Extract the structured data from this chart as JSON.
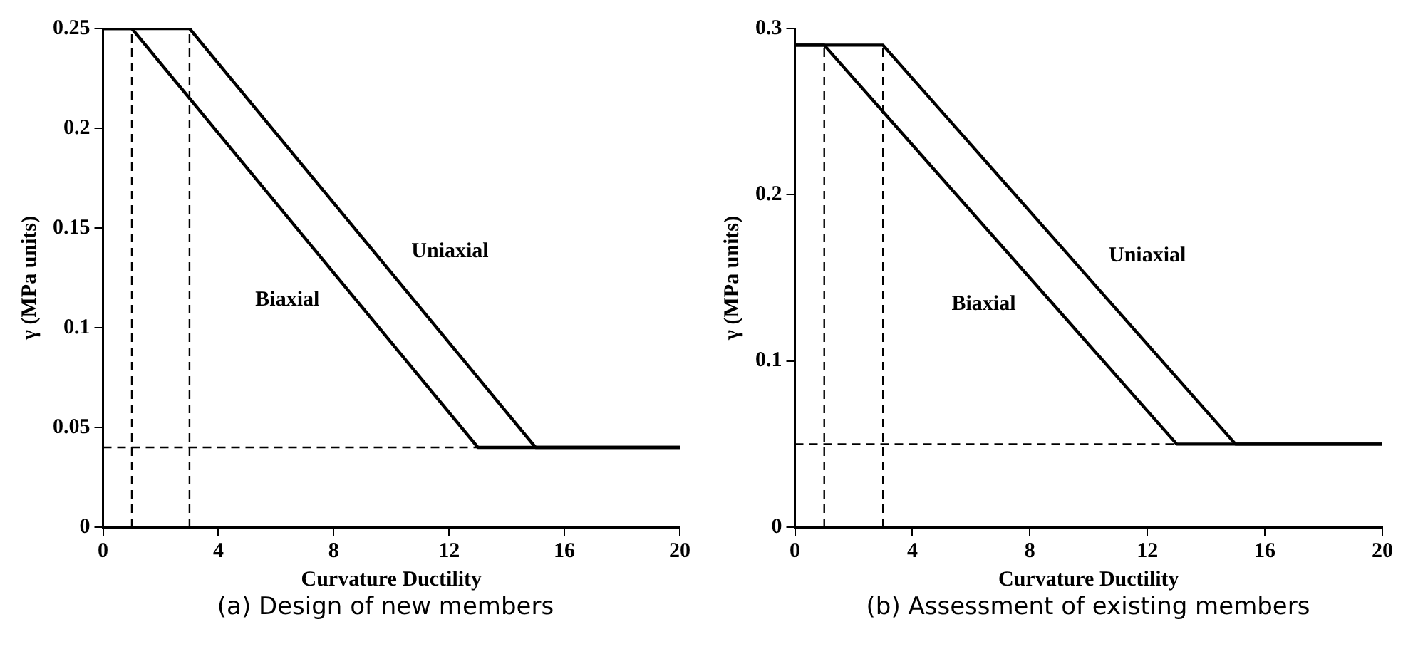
{
  "chart_data": [
    {
      "type": "line",
      "xlabel": "Curvature Ductility",
      "ylabel": "γ (MPa units)",
      "xlim": [
        0,
        20
      ],
      "xticks": [
        0,
        4,
        8,
        12,
        16,
        20
      ],
      "ylim": [
        0,
        0.25
      ],
      "yticks": [
        0,
        0.05,
        0.1,
        0.15,
        0.2,
        0.25
      ],
      "grid": false,
      "legend": false,
      "marker": "none",
      "series": [
        {
          "name": "Biaxial",
          "color": "#000000",
          "line_style": "solid",
          "x": [
            0,
            1,
            13,
            20
          ],
          "values": [
            0.25,
            0.25,
            0.04,
            0.04
          ]
        },
        {
          "name": "Uniaxial",
          "color": "#000000",
          "line_style": "solid",
          "x": [
            0,
            3,
            15,
            20
          ],
          "values": [
            0.25,
            0.25,
            0.04,
            0.04
          ]
        },
        {
          "color": "#000000",
          "line_style": "dashed",
          "x": [
            1,
            1
          ],
          "values": [
            0,
            0.25
          ]
        },
        {
          "color": "#000000",
          "line_style": "dashed",
          "x": [
            3,
            3
          ],
          "values": [
            0,
            0.25
          ]
        },
        {
          "color": "#000000",
          "line_style": "dashed",
          "x": [
            0,
            13
          ],
          "values": [
            0.04,
            0.04
          ]
        }
      ],
      "annotations": [
        "(a)  Design of new members"
      ]
    },
    {
      "type": "line",
      "xlabel": "Curvature Ductility",
      "ylabel": "γ (MPa units)",
      "xlim": [
        0,
        20
      ],
      "xticks": [
        0,
        4,
        8,
        12,
        16,
        20
      ],
      "ylim": [
        0,
        0.3
      ],
      "yticks": [
        0,
        0.1,
        0.2,
        0.3
      ],
      "grid": false,
      "legend": false,
      "marker": "none",
      "series": [
        {
          "name": "Biaxial",
          "color": "#000000",
          "line_style": "solid",
          "x": [
            0,
            1,
            13,
            20
          ],
          "values": [
            0.29,
            0.29,
            0.05,
            0.05
          ]
        },
        {
          "name": "Uniaxial",
          "color": "#000000",
          "line_style": "solid",
          "x": [
            0,
            3,
            15,
            20
          ],
          "values": [
            0.29,
            0.29,
            0.05,
            0.05
          ]
        },
        {
          "color": "#000000",
          "line_style": "dashed",
          "x": [
            1,
            1
          ],
          "values": [
            0,
            0.29
          ]
        },
        {
          "color": "#000000",
          "line_style": "dashed",
          "x": [
            3,
            3
          ],
          "values": [
            0,
            0.29
          ]
        },
        {
          "color": "#000000",
          "line_style": "dashed",
          "x": [
            0,
            13
          ],
          "values": [
            0.05,
            0.05
          ]
        }
      ],
      "annotations": [
        "(b)  Assessment of existing members"
      ]
    }
  ]
}
